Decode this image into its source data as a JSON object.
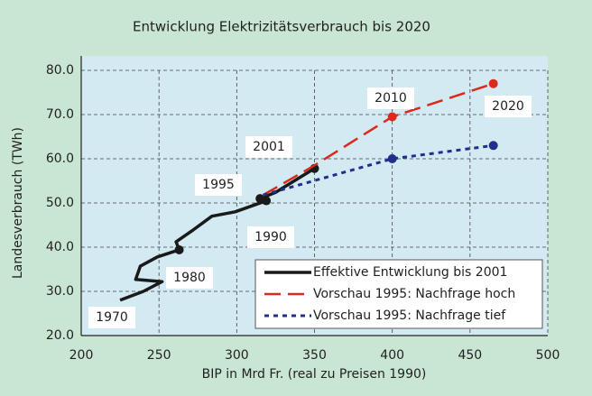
{
  "chart_data": {
    "type": "line",
    "title": "Entwicklung Elektrizitätsverbrauch bis 2020",
    "xlabel": "BIP in Mrd Fr. (real zu Preisen 1990)",
    "ylabel": "Landesverbrauch (TWh)",
    "xlim": [
      200,
      500
    ],
    "xticks": [
      200,
      250,
      300,
      350,
      400,
      450,
      500
    ],
    "ylim": [
      20,
      80
    ],
    "yticks": [
      {
        "value": 20,
        "label": "20.0"
      },
      {
        "value": 30,
        "label": "30.0"
      },
      {
        "value": 40,
        "label": "40.0"
      },
      {
        "value": 50,
        "label": "50.0"
      },
      {
        "value": 60,
        "label": "60.0"
      },
      {
        "value": 70,
        "label": "70.0"
      },
      {
        "value": 80,
        "label": "80.0"
      }
    ],
    "grid": true,
    "legend": "lower right",
    "series": [
      {
        "name": "Effektive Entwicklung bis 2001",
        "color": "#1a1a1a",
        "style": "solid",
        "x": [
          225,
          240,
          252,
          235,
          238,
          249,
          263,
          261,
          272,
          284,
          299,
          319,
          315,
          325,
          337,
          350
        ],
        "values": [
          28,
          30,
          32.2,
          32.7,
          35.7,
          37.8,
          39.4,
          41.2,
          43.9,
          47,
          48,
          50.5,
          51,
          52.4,
          55,
          57.8
        ]
      },
      {
        "name": "Vorschau 1995: Nachfrage hoch",
        "color": "#d92a1c",
        "style": "dashed",
        "x": [
          317,
          350,
          400,
          465
        ],
        "values": [
          51.8,
          58.5,
          69.5,
          77
        ]
      },
      {
        "name": "Vorschau 1995: Nachfrage tief",
        "color": "#1f2f8a",
        "style": "dotted",
        "x": [
          317,
          400,
          465
        ],
        "values": [
          51.8,
          60,
          63
        ]
      }
    ],
    "annotations": [
      "1970",
      "1980",
      "1990",
      "1995",
      "2001",
      "2010",
      "2020"
    ]
  }
}
